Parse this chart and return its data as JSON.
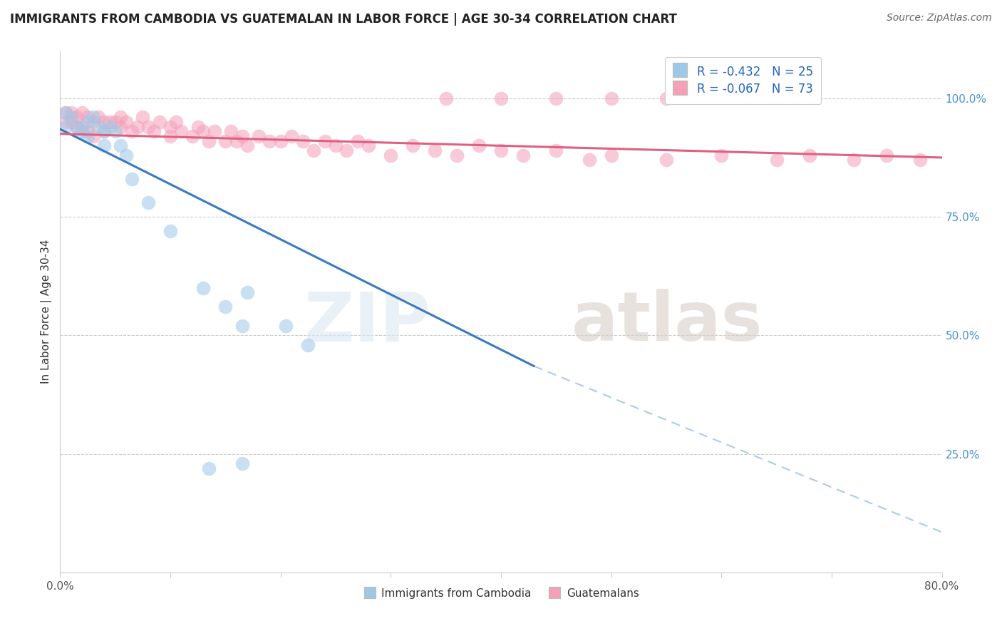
{
  "title": "IMMIGRANTS FROM CAMBODIA VS GUATEMALAN IN LABOR FORCE | AGE 30-34 CORRELATION CHART",
  "source": "Source: ZipAtlas.com",
  "ylabel": "In Labor Force | Age 30-34",
  "xlim": [
    0.0,
    0.8
  ],
  "ylim": [
    0.0,
    1.1
  ],
  "x_ticks": [
    0.0,
    0.1,
    0.2,
    0.3,
    0.4,
    0.5,
    0.6,
    0.7,
    0.8
  ],
  "x_tick_labels": [
    "0.0%",
    "",
    "",
    "",
    "",
    "",
    "",
    "",
    "80.0%"
  ],
  "y_tick_right": [
    0.25,
    0.5,
    0.75,
    1.0
  ],
  "y_tick_right_labels": [
    "25.0%",
    "50.0%",
    "75.0%",
    "100.0%"
  ],
  "legend_r1": "-0.432",
  "legend_n1": "25",
  "legend_r2": "-0.067",
  "legend_n2": "73",
  "blue_color": "#9ec8e8",
  "pink_color": "#f4a0b8",
  "trend_blue": "#3a7abf",
  "trend_pink": "#e06080",
  "blue_line_x": [
    0.0,
    0.43
  ],
  "blue_line_y": [
    0.935,
    0.435
  ],
  "dash_line_x": [
    0.43,
    0.8
  ],
  "dash_line_y": [
    0.435,
    0.085
  ],
  "pink_line_x": [
    0.0,
    0.8
  ],
  "pink_line_y": [
    0.925,
    0.875
  ],
  "cambodia_x": [
    0.005,
    0.005,
    0.01,
    0.015,
    0.02,
    0.025,
    0.025,
    0.03,
    0.035,
    0.04,
    0.04,
    0.045,
    0.05,
    0.055,
    0.06,
    0.065,
    0.08,
    0.1,
    0.13,
    0.15,
    0.165,
    0.205,
    0.225,
    0.17,
    0.165
  ],
  "cambodia_y": [
    0.97,
    0.94,
    0.96,
    0.94,
    0.93,
    0.95,
    0.92,
    0.96,
    0.94,
    0.93,
    0.9,
    0.94,
    0.93,
    0.9,
    0.88,
    0.83,
    0.78,
    0.72,
    0.6,
    0.56,
    0.52,
    0.52,
    0.48,
    0.59,
    0.23
  ],
  "cambodia_outlier_x": [
    0.135
  ],
  "cambodia_outlier_y": [
    0.22
  ],
  "guatemalan_x": [
    0.005,
    0.005,
    0.01,
    0.01,
    0.015,
    0.015,
    0.02,
    0.02,
    0.025,
    0.025,
    0.03,
    0.03,
    0.035,
    0.04,
    0.04,
    0.045,
    0.05,
    0.055,
    0.055,
    0.06,
    0.065,
    0.07,
    0.075,
    0.08,
    0.085,
    0.09,
    0.1,
    0.1,
    0.105,
    0.11,
    0.12,
    0.125,
    0.13,
    0.135,
    0.14,
    0.15,
    0.155,
    0.16,
    0.165,
    0.17,
    0.18,
    0.19,
    0.2,
    0.21,
    0.22,
    0.23,
    0.24,
    0.25,
    0.26,
    0.27,
    0.28,
    0.3,
    0.32,
    0.34,
    0.36,
    0.38,
    0.4,
    0.42,
    0.45,
    0.48,
    0.5,
    0.55,
    0.6,
    0.65,
    0.68,
    0.72,
    0.75,
    0.78,
    0.35,
    0.4,
    0.45,
    0.5,
    0.55
  ],
  "guatemalan_y": [
    0.97,
    0.95,
    0.97,
    0.95,
    0.96,
    0.94,
    0.97,
    0.94,
    0.96,
    0.93,
    0.95,
    0.92,
    0.96,
    0.95,
    0.93,
    0.95,
    0.95,
    0.94,
    0.96,
    0.95,
    0.93,
    0.94,
    0.96,
    0.94,
    0.93,
    0.95,
    0.94,
    0.92,
    0.95,
    0.93,
    0.92,
    0.94,
    0.93,
    0.91,
    0.93,
    0.91,
    0.93,
    0.91,
    0.92,
    0.9,
    0.92,
    0.91,
    0.91,
    0.92,
    0.91,
    0.89,
    0.91,
    0.9,
    0.89,
    0.91,
    0.9,
    0.88,
    0.9,
    0.89,
    0.88,
    0.9,
    0.89,
    0.88,
    0.89,
    0.87,
    0.88,
    0.87,
    0.88,
    0.87,
    0.88,
    0.87,
    0.88,
    0.87,
    1.0,
    1.0,
    1.0,
    1.0,
    1.0
  ]
}
